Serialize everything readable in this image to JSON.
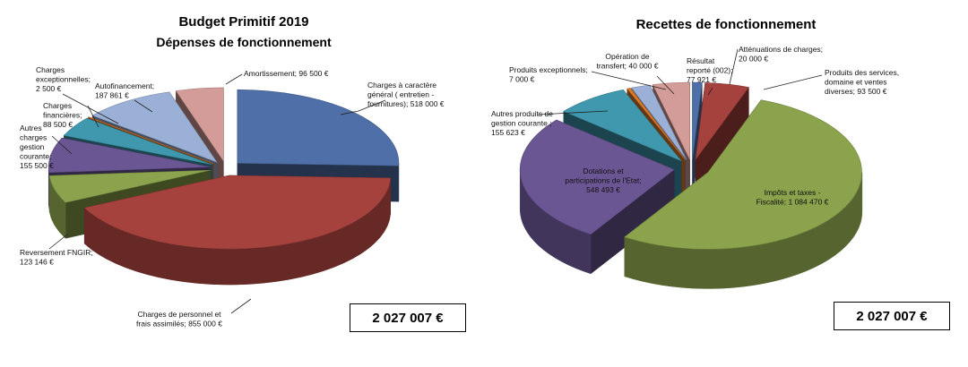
{
  "chart_data": [
    {
      "type": "pie",
      "title": "Budget Primitif 2019",
      "subtitle": "Dépenses de fonctionnement",
      "total": "2 027 007 €",
      "slices": [
        {
          "label": "Charges à caractère général ( entretien - fournitures); 518 000 €",
          "value": 518000,
          "color": "#4f6fa8"
        },
        {
          "label": "Charges de personnel et frais assimilés; 855 000 €",
          "value": 855000,
          "color": "#a6423e"
        },
        {
          "label": "Reversement  FNGIR; 123 146 €",
          "value": 123146,
          "color": "#8aa34c"
        },
        {
          "label": "Autres charges gestion courante; 155 500 €",
          "value": 155500,
          "color": "#6b5694"
        },
        {
          "label": "Charges financières; 88 500 €",
          "value": 88500,
          "color": "#3f98ad"
        },
        {
          "label": "Charges exceptionnelles; 2 500 €",
          "value": 2500,
          "color": "#e07b29"
        },
        {
          "label": "Autofinancement; 187 861 €",
          "value": 187861,
          "color": "#9bb0d6"
        },
        {
          "label": "Amortissement; 96 500 €",
          "value": 96500,
          "color": "#d49c98"
        }
      ]
    },
    {
      "type": "pie",
      "title": "Recettes de fonctionnement",
      "total": "2 027 007 €",
      "slices": [
        {
          "label": "Atténuations de charges; 20 000 €",
          "value": 20000,
          "color": "#4f6fa8"
        },
        {
          "label": "Produits des services, domaine et ventes diverses; 93 500 €",
          "value": 93500,
          "color": "#a6423e"
        },
        {
          "label": "Impôts et taxes - Fiscalité; 1 084 470 €",
          "value": 1084470,
          "color": "#8aa34c"
        },
        {
          "label": "Dotations et participations de l'Etat; 548 493 €",
          "value": 548493,
          "color": "#6b5694"
        },
        {
          "label": "Autres produits de gestion courante ; 155 623 €",
          "value": 155623,
          "color": "#3f98ad"
        },
        {
          "label": "Produits exceptionnels; 7 000 €",
          "value": 7000,
          "color": "#e07b29"
        },
        {
          "label": "Opération de transfert; 40 000 €",
          "value": 40000,
          "color": "#9bb0d6"
        },
        {
          "label": "Résultat reporté (002); 77 921 €",
          "value": 77921,
          "color": "#d49c98"
        }
      ]
    }
  ]
}
